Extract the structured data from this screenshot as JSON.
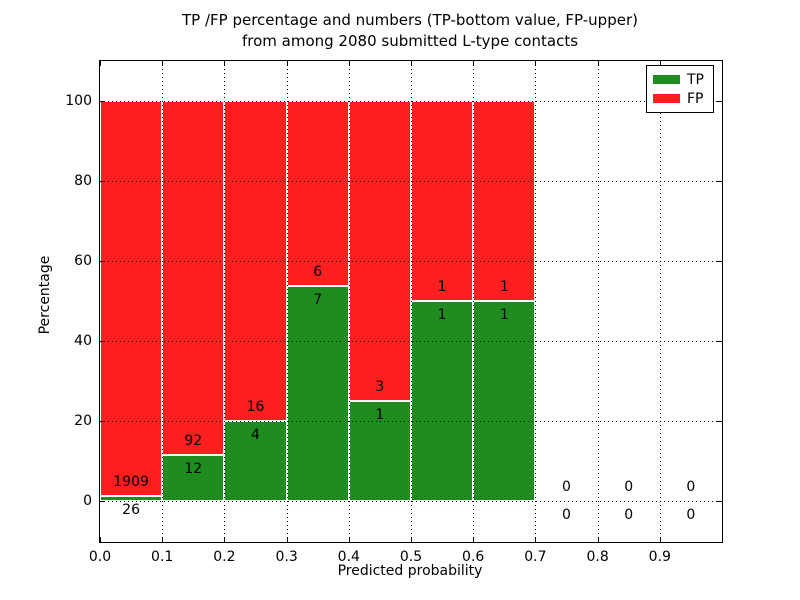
{
  "title_line1": "TP /FP percentage and numbers (TP-bottom value, FP-upper)",
  "title_line2": "from among 2080 submitted L-type contacts",
  "axes": {
    "x_label": "Predicted probability",
    "y_label": "Percentage"
  },
  "legend": {
    "items": [
      {
        "label": "TP",
        "color": "#1f8c1f"
      },
      {
        "label": "FP",
        "color": "#ff1f1f"
      }
    ],
    "position": "upper right"
  },
  "chart_data": {
    "type": "bar",
    "stacked": true,
    "title": "TP /FP percentage and numbers (TP-bottom value, FP-upper) from among 2080 submitted L-type contacts",
    "xlabel": "Predicted probability",
    "ylabel": "Percentage",
    "xlim": [
      0.0,
      1.0
    ],
    "ylim": [
      -10,
      110
    ],
    "xticks": [
      "0.0",
      "0.1",
      "0.2",
      "0.3",
      "0.4",
      "0.5",
      "0.6",
      "0.7",
      "0.8",
      "0.9"
    ],
    "yticks": [
      0,
      20,
      40,
      60,
      80,
      100
    ],
    "grid": true,
    "grid_style": "dotted",
    "grid_above_bars": true,
    "bar_edge_color": "#ffffff",
    "colors": {
      "tp": "#1f8c1f",
      "fp": "#ff1f1f"
    },
    "total_contacts": 2080,
    "bins": [
      {
        "range": [
          0.0,
          0.1
        ],
        "tp_count": 26,
        "fp_count": 1909,
        "tp_pct": 1.34,
        "fp_pct": 98.66
      },
      {
        "range": [
          0.1,
          0.2
        ],
        "tp_count": 12,
        "fp_count": 92,
        "tp_pct": 11.54,
        "fp_pct": 88.46
      },
      {
        "range": [
          0.2,
          0.3
        ],
        "tp_count": 4,
        "fp_count": 16,
        "tp_pct": 20.0,
        "fp_pct": 80.0
      },
      {
        "range": [
          0.3,
          0.4
        ],
        "tp_count": 7,
        "fp_count": 6,
        "tp_pct": 53.85,
        "fp_pct": 46.15
      },
      {
        "range": [
          0.4,
          0.5
        ],
        "tp_count": 1,
        "fp_count": 3,
        "tp_pct": 25.0,
        "fp_pct": 75.0
      },
      {
        "range": [
          0.5,
          0.6
        ],
        "tp_count": 1,
        "fp_count": 1,
        "tp_pct": 50.0,
        "fp_pct": 50.0
      },
      {
        "range": [
          0.6,
          0.7
        ],
        "tp_count": 1,
        "fp_count": 1,
        "tp_pct": 50.0,
        "fp_pct": 50.0
      },
      {
        "range": [
          0.7,
          0.8
        ],
        "tp_count": 0,
        "fp_count": 0,
        "tp_pct": 0,
        "fp_pct": 0
      },
      {
        "range": [
          0.8,
          0.9
        ],
        "tp_count": 0,
        "fp_count": 0,
        "tp_pct": 0,
        "fp_pct": 0
      },
      {
        "range": [
          0.9,
          1.0
        ],
        "tp_count": 0,
        "fp_count": 0,
        "tp_pct": 0,
        "fp_pct": 0
      }
    ]
  }
}
